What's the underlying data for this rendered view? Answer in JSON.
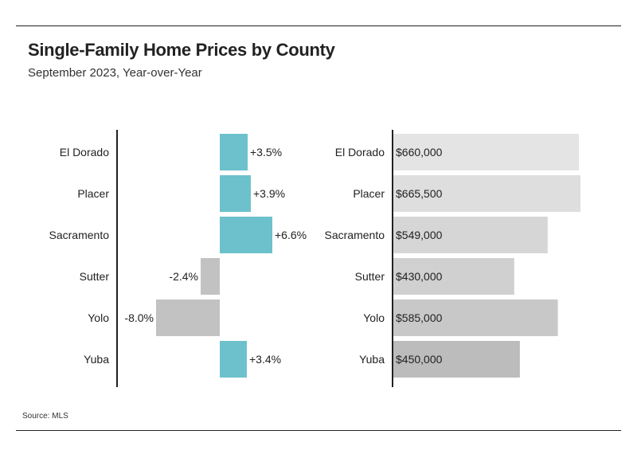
{
  "title": "Single-Family Home Prices by County",
  "subtitle": "September 2023, Year-over-Year",
  "source": "Source: MLS",
  "colors": {
    "positive": "#6cc1cc",
    "negative": "#c2c2c2",
    "price_shades": [
      "#e4e4e4",
      "#dedede",
      "#d6d6d6",
      "#d0d0d0",
      "#c8c8c8",
      "#bcbcbc"
    ],
    "axis": "#222222"
  },
  "chart_data": [
    {
      "type": "bar",
      "orientation": "horizontal",
      "categories": [
        "El Dorado",
        "Placer",
        "Sacramento",
        "Sutter",
        "Yolo",
        "Yuba"
      ],
      "values": [
        3.5,
        3.9,
        6.6,
        -2.4,
        -8.0,
        3.4
      ],
      "data_labels": [
        "+3.5%",
        "+3.9%",
        "+6.6%",
        "-2.4%",
        "-8.0%",
        "+3.4%"
      ],
      "xlim": [
        -12,
        12
      ],
      "grid": false
    },
    {
      "type": "bar",
      "orientation": "horizontal",
      "categories": [
        "El Dorado",
        "Placer",
        "Sacramento",
        "Sutter",
        "Yolo",
        "Yuba"
      ],
      "values": [
        660000,
        665500,
        549000,
        430000,
        585000,
        450000
      ],
      "data_labels": [
        "$660,000",
        "$665,500",
        "$549,000",
        "$430,000",
        "$585,000",
        "$450,000"
      ],
      "xlim": [
        0,
        665500
      ],
      "grid": false
    }
  ]
}
